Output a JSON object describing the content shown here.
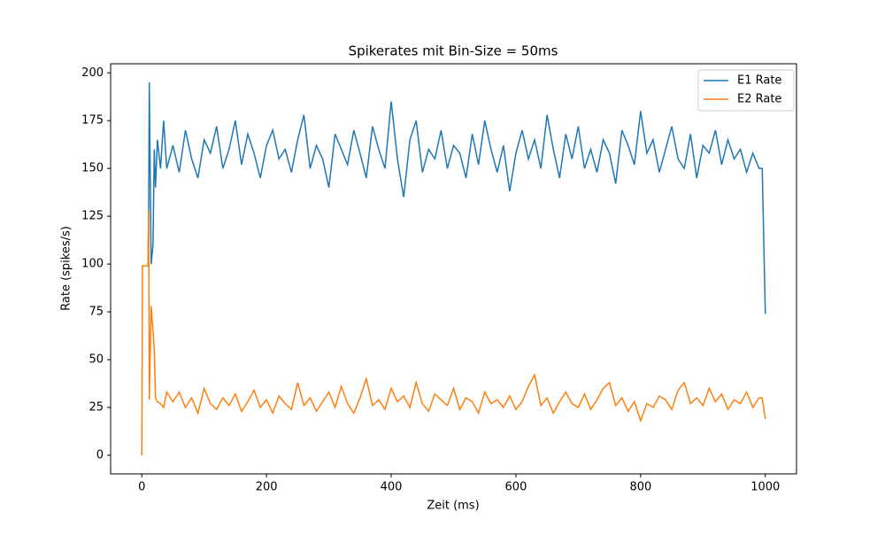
{
  "chart_data": {
    "type": "line",
    "title": "Spikerates mit Bin-Size = 50ms",
    "x_label": "Zeit (ms)",
    "y_label": "Rate (spikes/s)",
    "x": [
      0,
      1,
      10,
      11,
      12,
      15,
      18,
      20,
      22,
      25,
      30,
      35,
      40,
      50,
      60,
      70,
      80,
      90,
      100,
      110,
      120,
      130,
      140,
      150,
      160,
      170,
      180,
      190,
      200,
      210,
      220,
      230,
      240,
      250,
      260,
      270,
      280,
      290,
      300,
      310,
      320,
      330,
      340,
      350,
      360,
      370,
      380,
      390,
      400,
      410,
      420,
      430,
      440,
      450,
      460,
      470,
      480,
      490,
      500,
      510,
      520,
      530,
      540,
      550,
      560,
      570,
      580,
      590,
      600,
      610,
      620,
      630,
      640,
      650,
      660,
      670,
      680,
      690,
      700,
      710,
      720,
      730,
      740,
      750,
      760,
      770,
      780,
      790,
      800,
      810,
      820,
      830,
      840,
      850,
      860,
      870,
      880,
      890,
      900,
      910,
      920,
      930,
      940,
      950,
      960,
      970,
      980,
      990,
      995,
      1000
    ],
    "series": [
      {
        "name": "E1 Rate",
        "color": "#1f77b4",
        "values": [
          99,
          99,
          99,
          128,
          195,
          100,
          110,
          160,
          140,
          165,
          150,
          175,
          150,
          162,
          148,
          170,
          155,
          145,
          165,
          158,
          172,
          150,
          160,
          175,
          152,
          168,
          158,
          145,
          162,
          170,
          155,
          160,
          148,
          165,
          178,
          150,
          162,
          155,
          140,
          168,
          160,
          152,
          170,
          158,
          145,
          172,
          160,
          150,
          185,
          155,
          135,
          165,
          175,
          148,
          160,
          155,
          170,
          150,
          162,
          158,
          145,
          168,
          152,
          175,
          160,
          148,
          162,
          138,
          158,
          170,
          155,
          165,
          150,
          178,
          160,
          145,
          168,
          155,
          172,
          150,
          160,
          148,
          165,
          158,
          142,
          170,
          162,
          152,
          180,
          158,
          165,
          148,
          160,
          172,
          155,
          150,
          168,
          145,
          162,
          158,
          170,
          152,
          165,
          155,
          160,
          148,
          158,
          150,
          150,
          74
        ]
      },
      {
        "name": "E2 Rate",
        "color": "#ff7f0e",
        "values": [
          0,
          99,
          99,
          128,
          29,
          78,
          65,
          55,
          30,
          28,
          27,
          25,
          33,
          28,
          33,
          25,
          30,
          22,
          35,
          27,
          24,
          30,
          26,
          32,
          23,
          28,
          34,
          25,
          29,
          22,
          31,
          27,
          24,
          38,
          26,
          30,
          23,
          28,
          33,
          25,
          36,
          27,
          22,
          30,
          40,
          26,
          29,
          24,
          35,
          28,
          31,
          25,
          38,
          27,
          23,
          32,
          29,
          26,
          35,
          24,
          30,
          28,
          22,
          33,
          27,
          29,
          25,
          31,
          24,
          28,
          36,
          42,
          26,
          30,
          22,
          28,
          33,
          27,
          25,
          32,
          24,
          29,
          35,
          38,
          26,
          30,
          23,
          28,
          18,
          27,
          25,
          31,
          29,
          24,
          34,
          38,
          27,
          30,
          26,
          35,
          28,
          32,
          24,
          29,
          27,
          33,
          25,
          30,
          30,
          19
        ]
      }
    ],
    "xlim": [
      -50,
      1050
    ],
    "ylim": [
      -9.75,
      204.75
    ],
    "xticks": [
      0,
      200,
      400,
      600,
      800,
      1000
    ],
    "yticks": [
      0,
      25,
      50,
      75,
      100,
      125,
      150,
      175,
      200
    ],
    "legend": "upper right"
  }
}
